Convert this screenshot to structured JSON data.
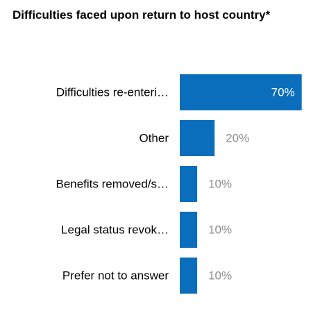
{
  "chart_data": {
    "type": "bar",
    "orientation": "horizontal",
    "title": "Difficulties faced upon return to host country*",
    "categories": [
      "Difficulties re-enteri…",
      "Other",
      "Benefits removed/s…",
      "Legal status revok…",
      "Prefer not to answer"
    ],
    "values": [
      70,
      20,
      10,
      10,
      10
    ],
    "value_labels": [
      "70%",
      "20%",
      "10%",
      "10%",
      "10%"
    ],
    "unit": "%",
    "xlim": [
      0,
      100
    ],
    "grid": false,
    "legend": "none",
    "colors": {
      "bar": "#0a6ebd",
      "label_inside": "#ffffff",
      "label_outside": "#8c8c8c"
    }
  }
}
